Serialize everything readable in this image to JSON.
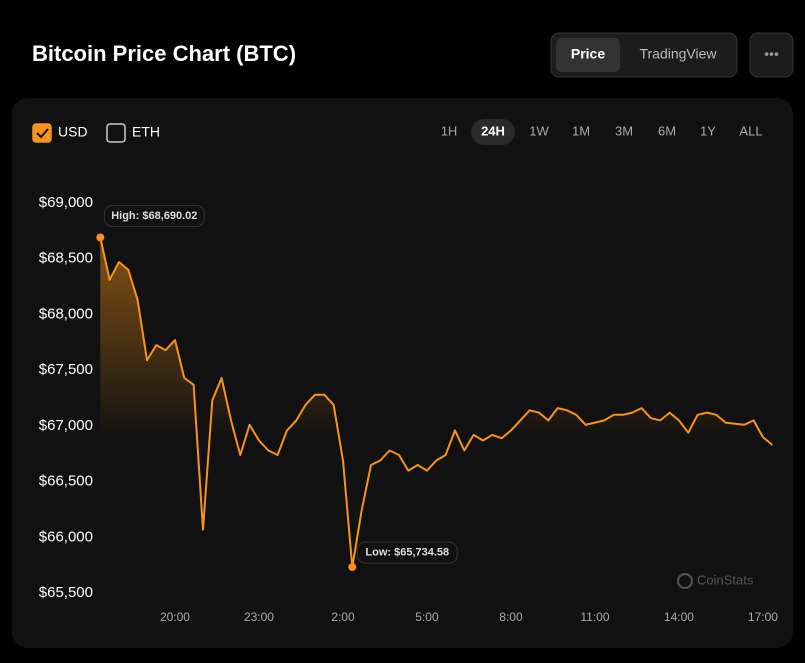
{
  "header": {
    "title": "Bitcoin Price Chart (BTC)",
    "tabs": [
      {
        "label": "Price",
        "active": true
      },
      {
        "label": "TradingView",
        "active": false
      }
    ],
    "menu": "•••"
  },
  "currencies": [
    {
      "label": "USD",
      "checked": true
    },
    {
      "label": "ETH",
      "checked": false
    }
  ],
  "ranges": [
    {
      "label": "1H",
      "active": false
    },
    {
      "label": "24H",
      "active": true
    },
    {
      "label": "1W",
      "active": false
    },
    {
      "label": "1M",
      "active": false
    },
    {
      "label": "3M",
      "active": false
    },
    {
      "label": "6M",
      "active": false
    },
    {
      "label": "1Y",
      "active": false
    },
    {
      "label": "ALL",
      "active": false
    }
  ],
  "watermark": "CoinStats",
  "chart_data": {
    "type": "line",
    "categories": [
      null,
      null,
      null,
      null,
      null,
      null,
      null,
      null,
      "20:00",
      null,
      null,
      null,
      null,
      null,
      null,
      null,
      null,
      "23:00",
      null,
      null,
      null,
      null,
      null,
      null,
      null,
      null,
      "2:00",
      null,
      null,
      null,
      null,
      null,
      null,
      null,
      null,
      "5:00",
      null,
      null,
      null,
      null,
      null,
      null,
      null,
      null,
      "8:00",
      null,
      null,
      null,
      null,
      null,
      null,
      null,
      null,
      "11:00",
      null,
      null,
      null,
      null,
      null,
      null,
      null,
      null,
      "14:00",
      null,
      null,
      null,
      null,
      null,
      null,
      null,
      null,
      "17:00",
      null
    ],
    "series": [
      {
        "color": "#f7931a",
        "values": [
          68690.02,
          68310,
          68470,
          68400,
          68130,
          67590,
          67725,
          67680,
          67770,
          67430,
          67370,
          66070,
          67230,
          67430,
          67050,
          66740,
          67010,
          66870,
          66780,
          66740,
          66960,
          67050,
          67190,
          67280,
          67280,
          67190,
          66690,
          65734.58,
          66240,
          66650,
          66690,
          66780,
          66740,
          66600,
          66650,
          66600,
          66690,
          66740,
          66960,
          66780,
          66920,
          66870,
          66920,
          66890,
          66960,
          67050,
          67140,
          67120,
          67050,
          67160,
          67140,
          67100,
          67010,
          67030,
          67050,
          67100,
          67100,
          67120,
          67160,
          67070,
          67050,
          67120,
          67050,
          66940,
          67100,
          67120,
          67100,
          67030,
          67020,
          67010,
          67050,
          66900,
          66830
        ]
      }
    ],
    "annotations": [
      "High: $68,690.02",
      "Low: $65,734.58"
    ],
    "ylim": [
      65350,
      69250
    ],
    "yticks": [
      {
        "value": 65500,
        "label": "$65,500"
      },
      {
        "value": 66000,
        "label": "$66,000"
      },
      {
        "value": 66500,
        "label": "$66,500"
      },
      {
        "value": 67000,
        "label": "$67,000"
      },
      {
        "value": 67500,
        "label": "$67,500"
      },
      {
        "value": 68000,
        "label": "$68,000"
      },
      {
        "value": 68500,
        "label": "$68,500"
      },
      {
        "value": 69000,
        "label": "$69,000"
      }
    ],
    "grid": false
  }
}
